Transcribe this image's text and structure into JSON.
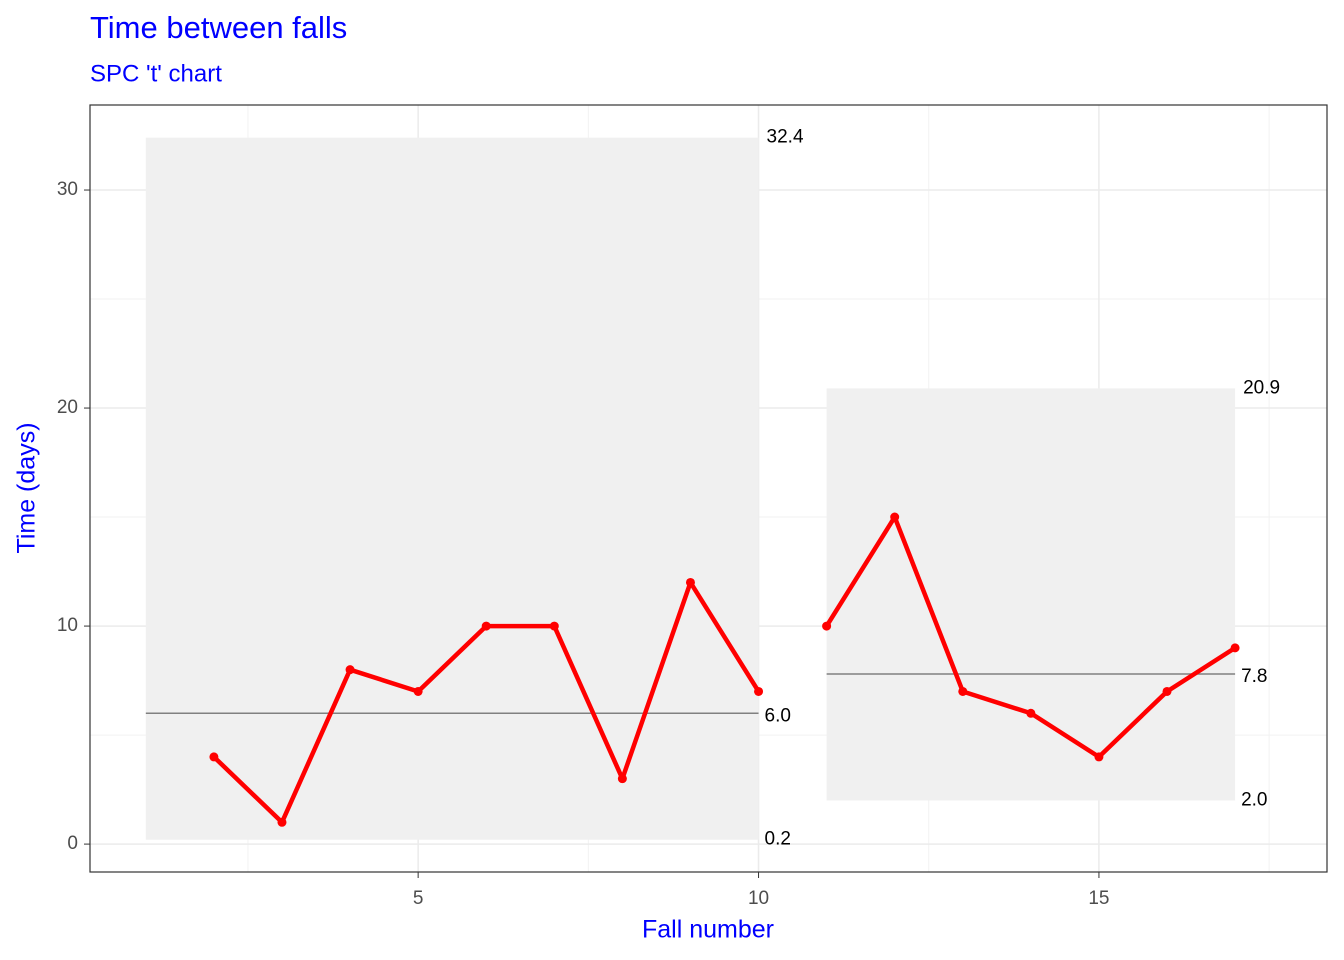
{
  "chart_data": {
    "type": "line",
    "title": "Time between falls",
    "subtitle": "SPC 't' chart",
    "x_label": "Fall number",
    "y_label": "Time (days)",
    "xlim": [
      0.18,
      18.35
    ],
    "ylim": [
      -1.28,
      33.9
    ],
    "xticks": [
      5,
      10,
      15
    ],
    "yticks": [
      0,
      10,
      20,
      30
    ],
    "xminor": [
      2.5,
      7.5,
      12.5,
      17.5
    ],
    "yminor": [
      5,
      15,
      25
    ],
    "grid": true,
    "series": [
      {
        "color": "#ff0000",
        "x": [
          2,
          3,
          4,
          5,
          6,
          7,
          8,
          9,
          10
        ],
        "values": [
          4,
          1,
          8,
          7,
          10,
          10,
          3,
          12,
          7
        ]
      },
      {
        "color": "#ff0000",
        "x": [
          11,
          12,
          13,
          14,
          15,
          16,
          17
        ],
        "values": [
          10,
          15,
          7,
          6,
          4,
          7,
          9
        ]
      }
    ],
    "limits": [
      {
        "x": [
          1,
          10
        ],
        "ucl": {
          "value": 32.4,
          "label": "32.4"
        },
        "cl": {
          "value": 6.0,
          "label": "6.0"
        },
        "lcl": {
          "value": 0.2,
          "label": "0.2"
        }
      },
      {
        "x": [
          11,
          17
        ],
        "ucl": {
          "value": 20.9,
          "label": "20.9"
        },
        "cl": {
          "value": 7.8,
          "label": "7.8"
        },
        "lcl": {
          "value": 2.0,
          "label": "2.0"
        }
      }
    ]
  }
}
